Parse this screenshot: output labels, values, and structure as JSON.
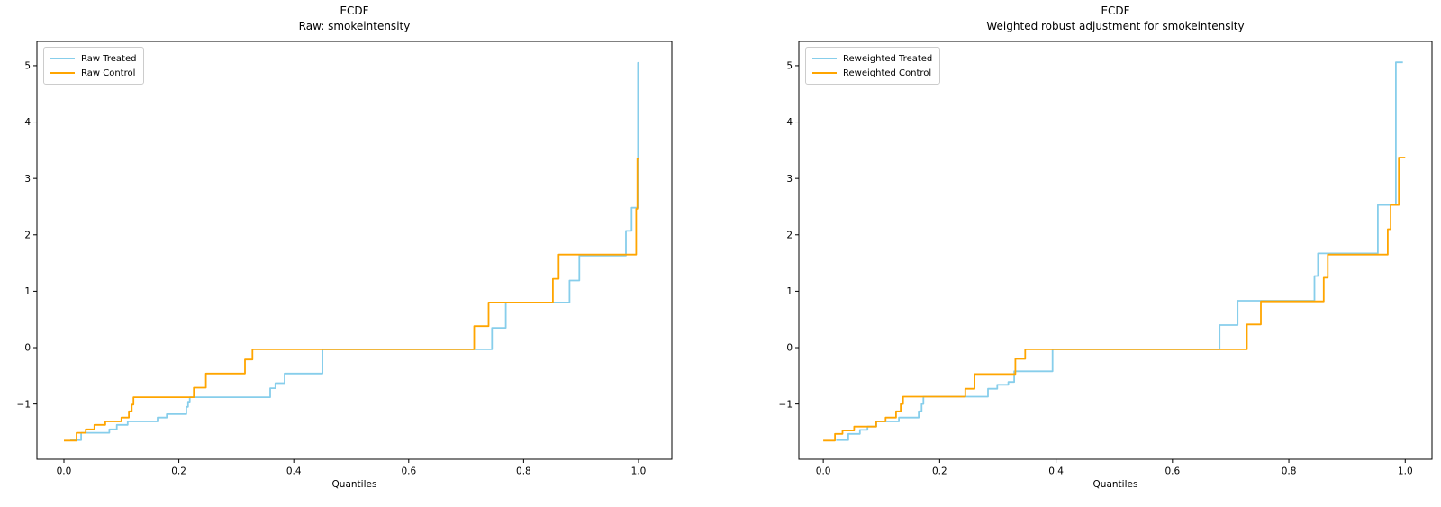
{
  "figure": {
    "background": "#ffffff"
  },
  "chart_data": [
    {
      "type": "line",
      "variant": "ecdf-step",
      "title": "ECDF",
      "subtitle": "Raw: smokeintensity",
      "xlabel": "Quantiles",
      "ylabel": "",
      "grid": false,
      "legend_position": "upper-left",
      "xlim": [
        -0.047,
        1.058
      ],
      "ylim": [
        -1.98,
        5.43
      ],
      "x_tick_values": [
        0.0,
        0.2,
        0.4,
        0.6,
        0.8,
        1.0
      ],
      "x_tick_labels": [
        "0.0",
        "0.2",
        "0.4",
        "0.6",
        "0.8",
        "1.0"
      ],
      "y_tick_values": [
        -1,
        0,
        1,
        2,
        3,
        4,
        5
      ],
      "y_tick_labels": [
        "−1",
        "0",
        "1",
        "2",
        "3",
        "4",
        "5"
      ],
      "series": [
        {
          "name": "Raw Treated",
          "color": "#87CEEB",
          "points": [
            [
              0.011,
              -1.64
            ],
            [
              0.03,
              -1.51
            ],
            [
              0.079,
              -1.45
            ],
            [
              0.092,
              -1.37
            ],
            [
              0.111,
              -1.31
            ],
            [
              0.163,
              -1.24
            ],
            [
              0.179,
              -1.18
            ],
            [
              0.213,
              -1.05
            ],
            [
              0.216,
              -0.96
            ],
            [
              0.219,
              -0.88
            ],
            [
              0.359,
              -0.72
            ],
            [
              0.368,
              -0.63
            ],
            [
              0.384,
              -0.46
            ],
            [
              0.45,
              -0.03
            ],
            [
              0.745,
              0.35
            ],
            [
              0.769,
              0.8
            ],
            [
              0.88,
              1.19
            ],
            [
              0.897,
              1.63
            ],
            [
              0.978,
              2.07
            ],
            [
              0.988,
              2.48
            ],
            [
              0.999,
              5.05
            ],
            [
              1.0,
              5.05
            ]
          ]
        },
        {
          "name": "Raw Control",
          "color": "#FFA500",
          "points": [
            [
              0.0,
              -1.65
            ],
            [
              0.022,
              -1.51
            ],
            [
              0.038,
              -1.45
            ],
            [
              0.053,
              -1.37
            ],
            [
              0.072,
              -1.31
            ],
            [
              0.1,
              -1.24
            ],
            [
              0.113,
              -1.13
            ],
            [
              0.118,
              -1.01
            ],
            [
              0.121,
              -0.88
            ],
            [
              0.226,
              -0.71
            ],
            [
              0.247,
              -0.46
            ],
            [
              0.315,
              -0.21
            ],
            [
              0.328,
              -0.03
            ],
            [
              0.714,
              0.38
            ],
            [
              0.739,
              0.8
            ],
            [
              0.851,
              1.22
            ],
            [
              0.861,
              1.65
            ],
            [
              0.996,
              2.46
            ],
            [
              0.998,
              3.35
            ],
            [
              1.0,
              3.35
            ]
          ]
        }
      ]
    },
    {
      "type": "line",
      "variant": "ecdf-step",
      "title": "ECDF",
      "subtitle": "Weighted robust adjustment for smokeintensity",
      "xlabel": "Quantiles",
      "ylabel": "",
      "grid": false,
      "legend_position": "upper-left",
      "xlim": [
        -0.042,
        1.046
      ],
      "ylim": [
        -1.98,
        5.43
      ],
      "x_tick_values": [
        0.0,
        0.2,
        0.4,
        0.6,
        0.8,
        1.0
      ],
      "x_tick_labels": [
        "0.0",
        "0.2",
        "0.4",
        "0.6",
        "0.8",
        "1.0"
      ],
      "y_tick_values": [
        -1,
        0,
        1,
        2,
        3,
        4,
        5
      ],
      "y_tick_labels": [
        "−1",
        "0",
        "1",
        "2",
        "3",
        "4",
        "5"
      ],
      "series": [
        {
          "name": "Reweighted Treated",
          "color": "#87CEEB",
          "points": [
            [
              0.022,
              -1.64
            ],
            [
              0.043,
              -1.53
            ],
            [
              0.063,
              -1.46
            ],
            [
              0.076,
              -1.4
            ],
            [
              0.091,
              -1.31
            ],
            [
              0.13,
              -1.24
            ],
            [
              0.164,
              -1.13
            ],
            [
              0.169,
              -1.0
            ],
            [
              0.172,
              -0.87
            ],
            [
              0.283,
              -0.73
            ],
            [
              0.299,
              -0.66
            ],
            [
              0.318,
              -0.61
            ],
            [
              0.328,
              -0.42
            ],
            [
              0.394,
              -0.03
            ],
            [
              0.681,
              0.4
            ],
            [
              0.712,
              0.83
            ],
            [
              0.844,
              1.27
            ],
            [
              0.85,
              1.67
            ],
            [
              0.953,
              2.53
            ],
            [
              0.984,
              5.06
            ],
            [
              0.996,
              5.06
            ]
          ]
        },
        {
          "name": "Reweighted Control",
          "color": "#FFA500",
          "points": [
            [
              0.0,
              -1.65
            ],
            [
              0.02,
              -1.53
            ],
            [
              0.033,
              -1.47
            ],
            [
              0.053,
              -1.4
            ],
            [
              0.091,
              -1.31
            ],
            [
              0.107,
              -1.24
            ],
            [
              0.125,
              -1.13
            ],
            [
              0.133,
              -1.0
            ],
            [
              0.137,
              -0.87
            ],
            [
              0.244,
              -0.73
            ],
            [
              0.26,
              -0.47
            ],
            [
              0.33,
              -0.2
            ],
            [
              0.347,
              -0.03
            ],
            [
              0.728,
              0.41
            ],
            [
              0.752,
              0.82
            ],
            [
              0.86,
              1.24
            ],
            [
              0.867,
              1.65
            ],
            [
              0.97,
              2.1
            ],
            [
              0.975,
              2.53
            ],
            [
              0.989,
              3.37
            ],
            [
              1.0,
              3.37
            ]
          ]
        }
      ]
    }
  ]
}
